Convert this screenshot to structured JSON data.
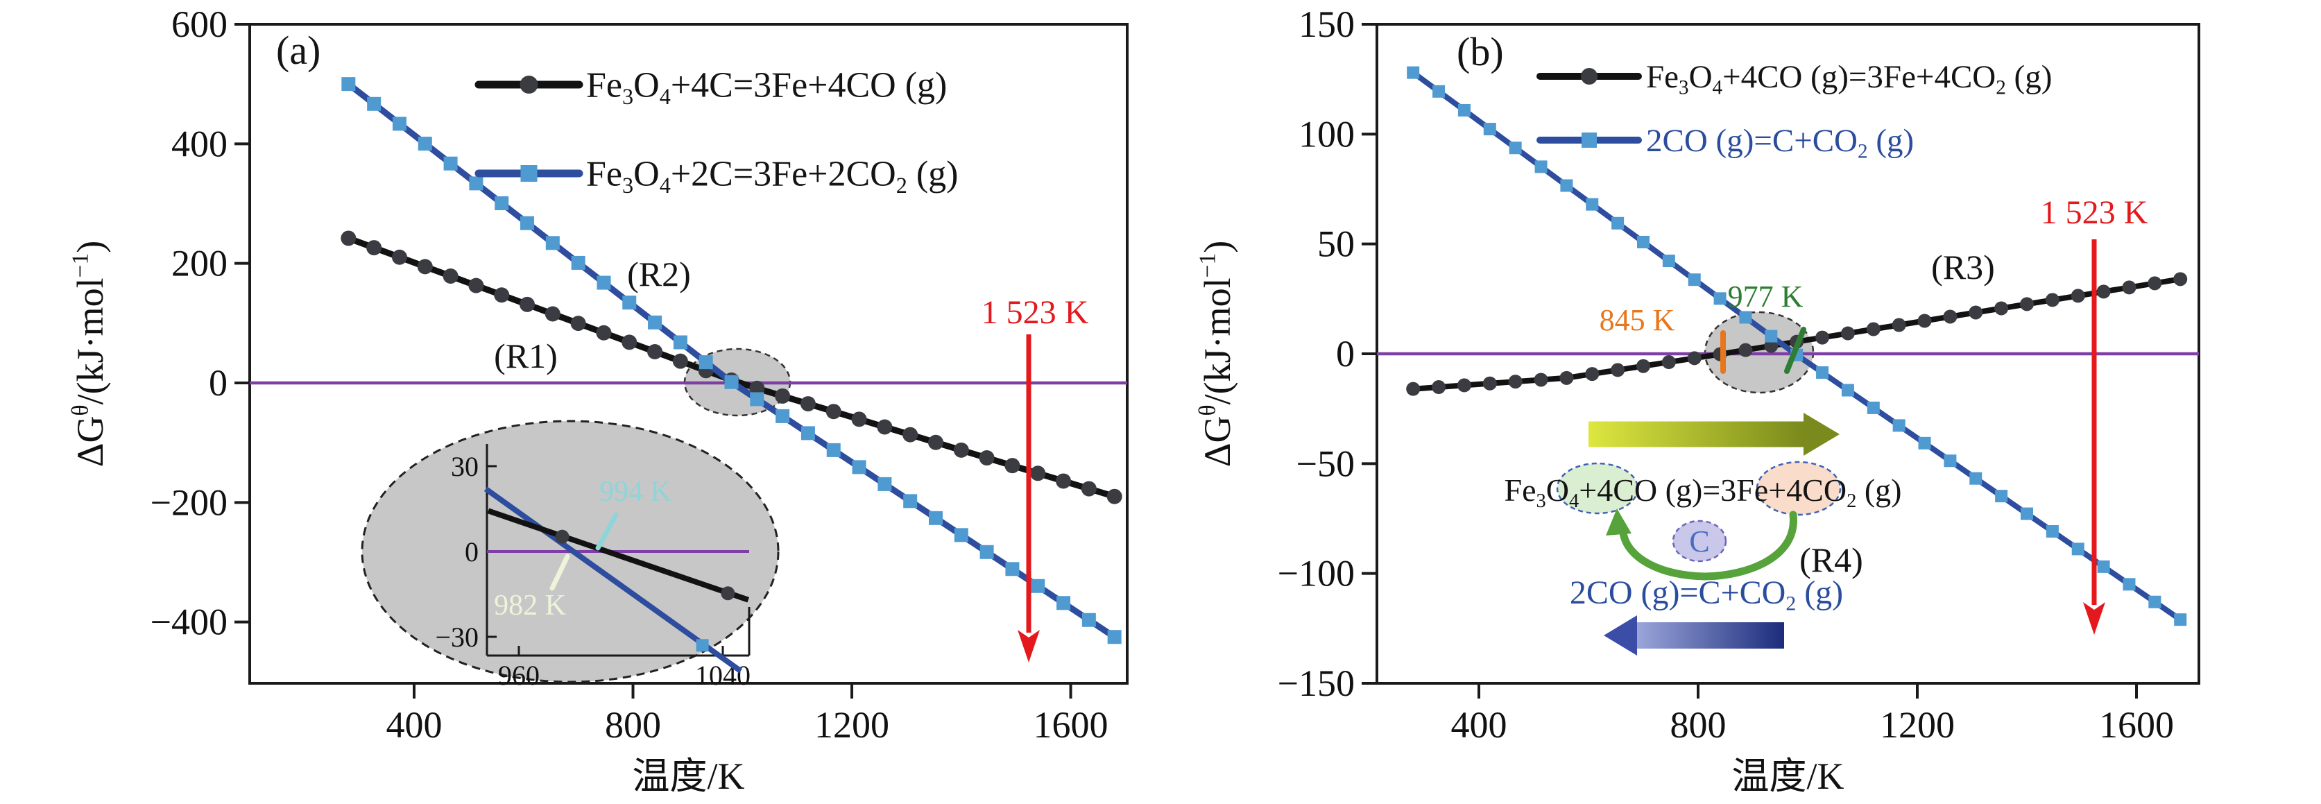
{
  "chart_data": [
    {
      "type": "line",
      "panel_tag": "(a)",
      "xlabel": "温度/K",
      "ylabel": "ΔG^θ^/(kJ·mol^−1^)",
      "x_ticks": {
        "values": [
          400,
          800,
          1200,
          1600
        ],
        "labels": [
          "400",
          "800",
          "1200",
          "1600"
        ]
      },
      "y_ticks": {
        "values": [
          600,
          400,
          200,
          0,
          -200,
          -400
        ],
        "labels": [
          "600",
          "400",
          "200",
          "0",
          "−200",
          "−400"
        ]
      },
      "x_range": [
        100,
        1702
      ],
      "y_range": [
        -502,
        600
      ],
      "zero_line": {
        "value": 0,
        "color": "#7d3fa5"
      },
      "legend": [
        {
          "series": "R1",
          "label": "Fe|3|O|4|+4C=3Fe+4CO (g)",
          "text_color": "#141414",
          "line_color": "#121212",
          "marker": "circle",
          "marker_color": "#3b3b42"
        },
        {
          "series": "R2",
          "label": "Fe|3|O|4|+2C=3Fe+2CO|2| (g)",
          "text_color": "#141414",
          "line_color": "#2e4d9f",
          "marker": "square",
          "marker_color": "#4f9ad1"
        }
      ],
      "series": [
        {
          "name": "R1",
          "reaction": "Fe3O4+4C=3Fe+4CO (g)",
          "line_color": "#121212",
          "marker": "circle",
          "marker_color": "#3b3b42",
          "anchors": [
            [
              280,
              242
            ],
            [
              994,
              0
            ],
            [
              1680,
              -190
            ]
          ],
          "t_start": 280,
          "t_end": 1680,
          "n_markers": 31,
          "zero_crossing_K": 994
        },
        {
          "name": "R2",
          "reaction": "Fe3O4+2C=3Fe+2CO2 (g)",
          "line_color": "#2e4d9f",
          "marker": "square",
          "marker_color": "#4f9ad1",
          "anchors": [
            [
              280,
              500
            ],
            [
              982,
              0
            ],
            [
              1680,
              -425
            ]
          ],
          "t_start": 280,
          "t_end": 1680,
          "n_markers": 31,
          "zero_crossing_K": 982
        }
      ],
      "curve_labels": [
        {
          "key": "r1",
          "text": "(R1)",
          "color": "#141414"
        },
        {
          "key": "r2",
          "text": "(R2)",
          "color": "#141414"
        }
      ],
      "vline": {
        "T": 1523,
        "label": "1 523 K",
        "color": "#e3191d"
      },
      "inset": {
        "x_ticks": {
          "values": [
            960,
            1040
          ],
          "labels": [
            "960",
            "1040"
          ]
        },
        "y_ticks": {
          "values": [
            30,
            0,
            -30
          ],
          "labels": [
            "30",
            "0",
            "−30"
          ]
        },
        "zero_line_color": "#7d3fa5",
        "callouts": [
          {
            "key": "c994",
            "text": "994 K",
            "color": "#8fd4d8",
            "points_to_K": 994
          },
          {
            "key": "c982",
            "text": "982 K",
            "color": "#edf4da",
            "points_to_K": 982
          }
        ]
      }
    },
    {
      "type": "line",
      "panel_tag": "(b)",
      "xlabel": "温度/K",
      "ylabel": "ΔG^θ^/(kJ·mol^−1^)",
      "x_ticks": {
        "values": [
          400,
          800,
          1200,
          1600
        ],
        "labels": [
          "400",
          "800",
          "1200",
          "1600"
        ]
      },
      "y_ticks": {
        "values": [
          150,
          100,
          50,
          0,
          -50,
          -100,
          -150
        ],
        "labels": [
          "150",
          "100",
          "50",
          "0",
          "−50",
          "−100",
          "−150"
        ]
      },
      "x_range": [
        214,
        1714
      ],
      "y_range": [
        -150,
        150
      ],
      "zero_line": {
        "value": 0,
        "color": "#7d3fa5"
      },
      "legend": [
        {
          "series": "R3",
          "label": "Fe|3|O|4|+4CO (g)=3Fe+4CO|2| (g)",
          "text_color": "#141414",
          "line_color": "#121212",
          "marker": "circle",
          "marker_color": "#3b3b42"
        },
        {
          "series": "R4",
          "label": "2CO (g)=C+CO|2| (g)",
          "text_color": "#2b4d9e",
          "line_color": "#2e4d9f",
          "marker": "square",
          "marker_color": "#4f9ad1"
        }
      ],
      "series": [
        {
          "name": "R3",
          "reaction": "Fe3O4+4CO (g)=3Fe+4CO2 (g)",
          "line_color": "#121212",
          "marker": "circle",
          "marker_color": "#3b3b42",
          "anchors": [
            [
              280,
              -16
            ],
            [
              560,
              -11
            ],
            [
              845,
              0
            ],
            [
              1680,
              34
            ]
          ],
          "t_start": 280,
          "t_end": 1680,
          "n_markers": 31,
          "zero_crossing_K": 845
        },
        {
          "name": "R4",
          "reaction": "2CO (g)=C+CO2 (g)",
          "line_color": "#2e4d9f",
          "marker": "square",
          "marker_color": "#4f9ad1",
          "anchors": [
            [
              280,
              128
            ],
            [
              977,
              0
            ],
            [
              1680,
              -121
            ]
          ],
          "t_start": 280,
          "t_end": 1680,
          "n_markers": 31,
          "zero_crossing_K": 977
        }
      ],
      "curve_labels": [
        {
          "key": "r3",
          "text": "(R3)",
          "color": "#141414"
        },
        {
          "key": "r4",
          "text": "(R4)",
          "color": "#141414"
        }
      ],
      "crossing_callouts": [
        {
          "key": "k845",
          "text": "845 K",
          "color": "#e8761c",
          "points_to_K": 845
        },
        {
          "key": "k977",
          "text": "977 K",
          "color": "#2e7d33",
          "points_to_K": 977
        }
      ],
      "vline": {
        "T": 1523,
        "label": "1 523 K",
        "color": "#e3191d"
      },
      "mechanism": {
        "forward_formula": "Fe|3|O|4|+4CO (g)=3Fe+4CO|2| (g)",
        "forward_color": "#141414",
        "reverse_formula": "2CO (g)=C+CO|2| (g)",
        "reverse_color": "#2b4d9e",
        "carbon_label": "C",
        "carbon_color": "#4a6cc3",
        "highlight_reactant_fill": "#daeed2",
        "highlight_product_fill": "#f9dcc9",
        "carbon_circle_fill": "#c9c7ea",
        "forward_arrow_gradient": [
          "#dde73f",
          "#7a8a1c"
        ],
        "reverse_arrow_gradient": [
          "#9aa5da",
          "#1c2c7c"
        ],
        "cycle_arrow_color": "#55a33a"
      }
    }
  ]
}
